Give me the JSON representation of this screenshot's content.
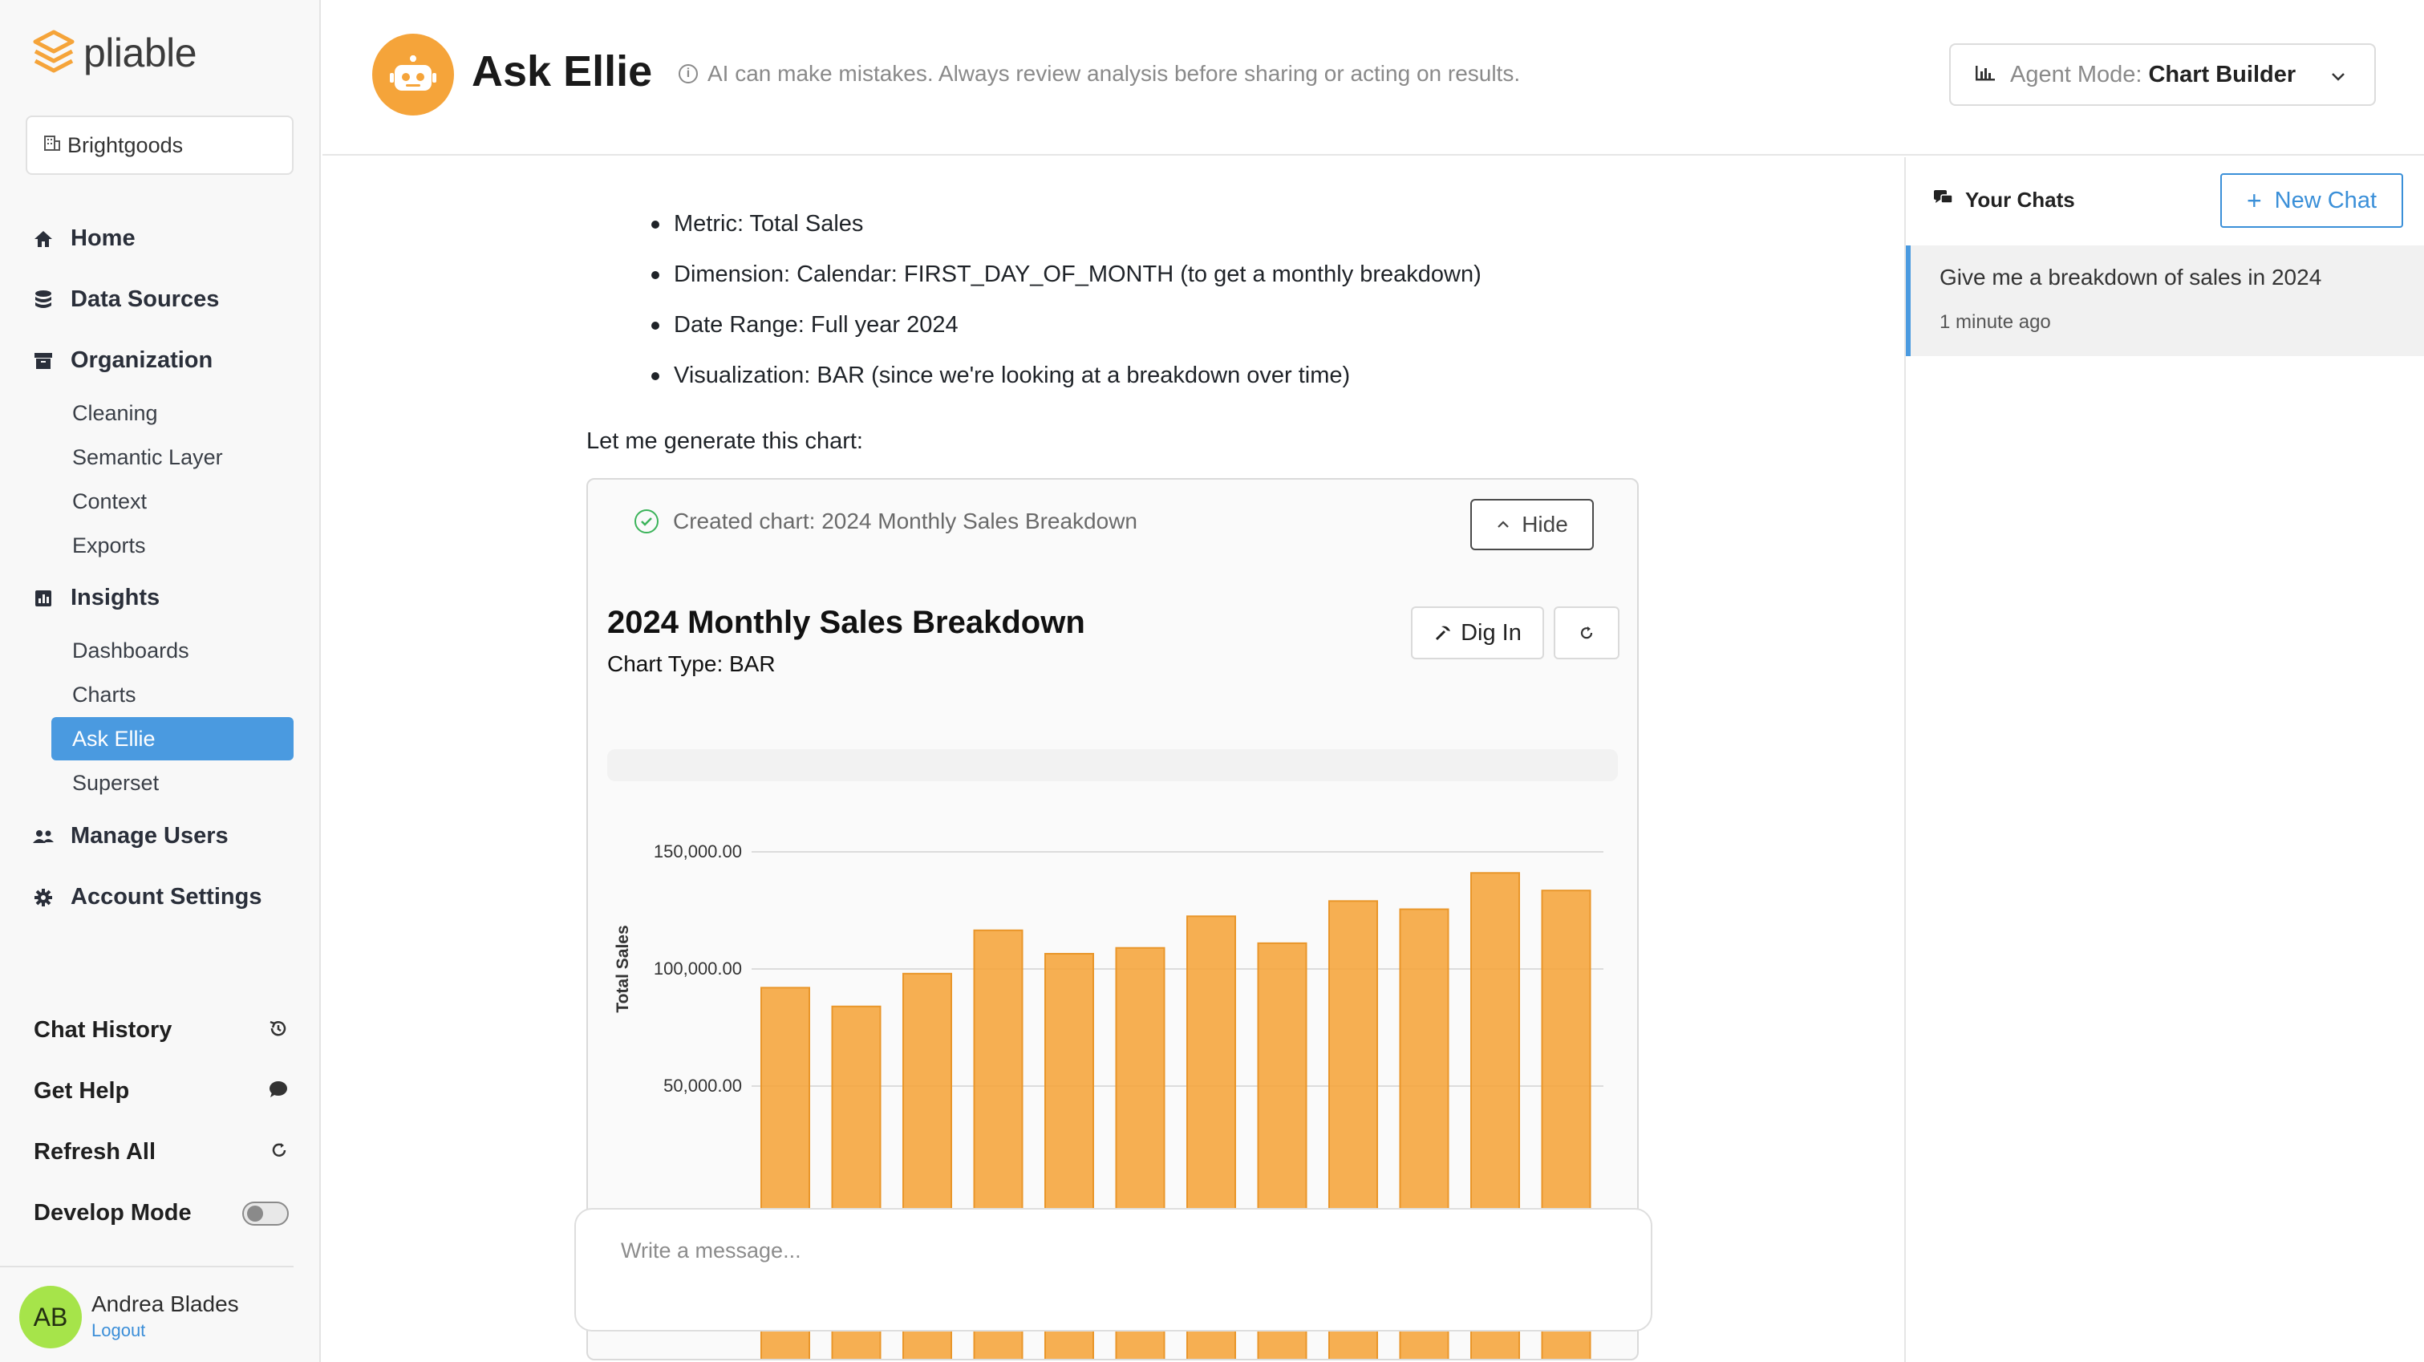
{
  "brand": {
    "name": "pliable",
    "accent": "#f5a43a"
  },
  "sidebar": {
    "org": "Brightgoods",
    "nav": [
      {
        "label": "Home",
        "icon": "home-icon"
      },
      {
        "label": "Data Sources",
        "icon": "database-icon"
      },
      {
        "label": "Organization",
        "icon": "archive-icon",
        "children": [
          "Cleaning",
          "Semantic Layer",
          "Context",
          "Exports"
        ]
      },
      {
        "label": "Insights",
        "icon": "chart-icon",
        "children": [
          "Dashboards",
          "Charts",
          "Ask Ellie",
          "Superset"
        ]
      },
      {
        "label": "Manage Users",
        "icon": "users-icon"
      },
      {
        "label": "Account Settings",
        "icon": "gear-icon"
      }
    ],
    "active_item": "Ask Ellie",
    "active_color": "#4a9ae0",
    "bottom": {
      "chat_history": "Chat History",
      "get_help": "Get Help",
      "refresh_all": "Refresh All",
      "develop_mode": "Develop Mode",
      "develop_mode_on": false
    },
    "user": {
      "initials": "AB",
      "name": "Andrea Blades",
      "logout": "Logout"
    }
  },
  "header": {
    "title": "Ask Ellie",
    "disclaimer": "AI can make mistakes. Always review analysis before sharing or acting on results.",
    "agent_mode_label": "Agent Mode:",
    "agent_mode_value": "Chart Builder"
  },
  "chat": {
    "bullets": [
      "Metric: Total Sales",
      "Dimension: Calendar: FIRST_DAY_OF_MONTH (to get a monthly breakdown)",
      "Date Range: Full year 2024",
      "Visualization: BAR (since we're looking at a breakdown over time)"
    ],
    "lead": "Let me generate this chart:",
    "tool_status": "Created chart: 2024 Monthly Sales Breakdown",
    "hide_label": "Hide",
    "dig_in_label": "Dig In",
    "composer_placeholder": "Write a message..."
  },
  "chart_data": {
    "type": "bar",
    "title": "2024 Monthly Sales Breakdown",
    "subtitle": "Chart Type: BAR",
    "xlabel": "",
    "ylabel": "Total Sales",
    "categories": [
      "",
      "",
      "",
      "",
      "",
      "",
      "",
      "",
      "",
      "",
      "",
      ""
    ],
    "values": [
      92000,
      84000,
      98000,
      116500,
      106500,
      109000,
      122500,
      111000,
      129000,
      125500,
      141000,
      133500
    ],
    "y_ticks": [
      50000,
      100000,
      150000
    ],
    "y_tick_labels": [
      "50,000.00",
      "100,000.00",
      "150,000.00"
    ],
    "ylim": [
      0,
      160000
    ],
    "grid": true,
    "bar_color": "#f5a43a"
  },
  "right_panel": {
    "title": "Your Chats",
    "new_chat": "New Chat",
    "items": [
      {
        "title": "Give me a breakdown of sales in 2024",
        "time": "1 minute ago"
      }
    ]
  }
}
